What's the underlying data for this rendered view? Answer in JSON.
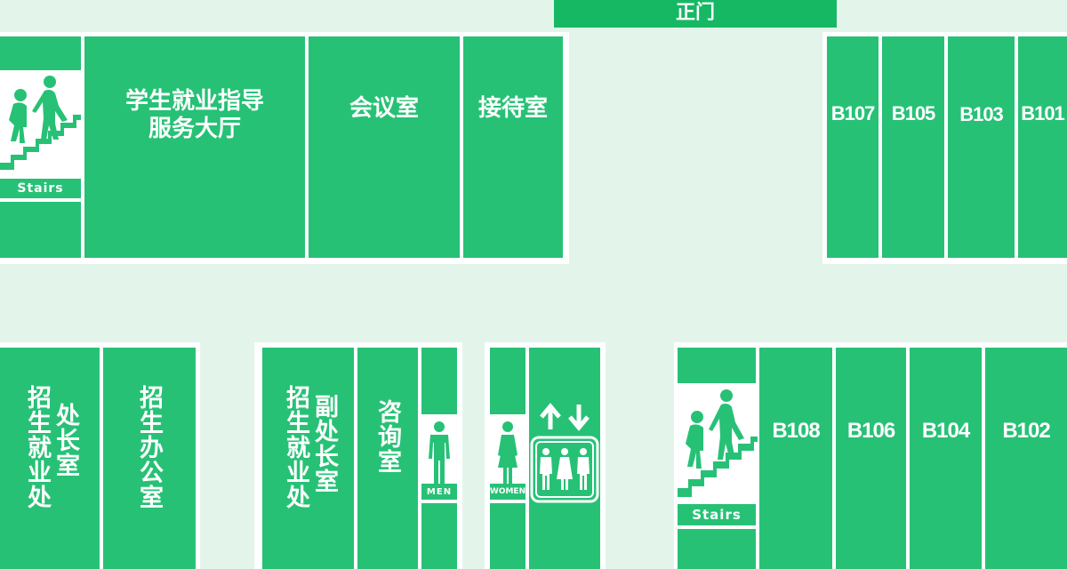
{
  "entrance": {
    "label": "正门"
  },
  "rooms": {
    "career_hall": "学生就业指导\n服务大厅",
    "meeting": "会议室",
    "reception": "接待室",
    "b107": "B107",
    "b105": "B105",
    "b103": "B103",
    "b101": "B101",
    "director_office_a": "处长室",
    "director_office_b": "招生就业处",
    "admission_office": "招生办公室",
    "deputy_office_a": "副处长室",
    "deputy_office_b": "招生就业处",
    "consult": "咨询室",
    "b108": "B108",
    "b106": "B106",
    "b104": "B104",
    "b102": "B102"
  },
  "signs": {
    "stairs_top": "Stairs",
    "stairs_bottom": "Stairs",
    "men": "MEN",
    "women": "WOMEN"
  },
  "colors": {
    "room": "#27c176",
    "corridor": "#e3f5ea",
    "entrance": "#16b864",
    "sign_bg": "#ffffff"
  }
}
